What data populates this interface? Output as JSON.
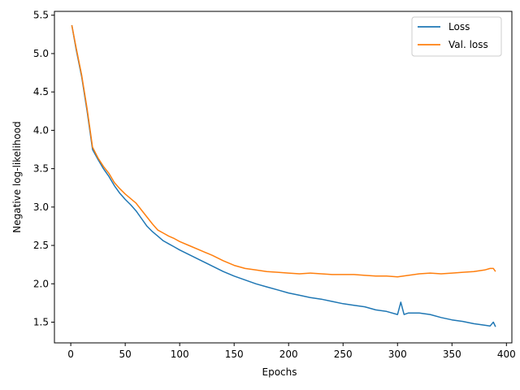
{
  "chart_data": {
    "type": "line",
    "title": "",
    "xlabel": "Epochs",
    "ylabel": "Negative log-likelihood",
    "xlim": [
      -15,
      405
    ],
    "ylim": [
      1.23,
      5.55
    ],
    "xticks": [
      0,
      50,
      100,
      150,
      200,
      250,
      300,
      350,
      400
    ],
    "yticks": [
      1.5,
      2.0,
      2.5,
      3.0,
      3.5,
      4.0,
      4.5,
      5.0,
      5.5
    ],
    "grid": false,
    "legend_position": "top-right",
    "series": [
      {
        "name": "Loss",
        "color": "#1f77b4",
        "x": [
          1,
          5,
          10,
          15,
          20,
          25,
          30,
          35,
          40,
          45,
          50,
          55,
          60,
          65,
          70,
          75,
          80,
          85,
          90,
          95,
          100,
          110,
          120,
          130,
          140,
          150,
          160,
          170,
          180,
          190,
          200,
          210,
          220,
          230,
          240,
          250,
          260,
          270,
          280,
          290,
          300,
          303,
          306,
          310,
          320,
          330,
          340,
          350,
          360,
          370,
          380,
          385,
          388,
          390
        ],
        "y": [
          5.37,
          5.05,
          4.7,
          4.25,
          3.75,
          3.62,
          3.5,
          3.4,
          3.28,
          3.18,
          3.1,
          3.03,
          2.95,
          2.85,
          2.75,
          2.68,
          2.62,
          2.56,
          2.52,
          2.48,
          2.44,
          2.37,
          2.3,
          2.23,
          2.16,
          2.1,
          2.05,
          2.0,
          1.96,
          1.92,
          1.88,
          1.85,
          1.82,
          1.8,
          1.77,
          1.74,
          1.72,
          1.7,
          1.66,
          1.64,
          1.6,
          1.76,
          1.6,
          1.62,
          1.62,
          1.6,
          1.56,
          1.53,
          1.51,
          1.48,
          1.46,
          1.45,
          1.5,
          1.44
        ]
      },
      {
        "name": "Val. loss",
        "color": "#ff7f0e",
        "x": [
          1,
          5,
          10,
          15,
          20,
          25,
          30,
          35,
          40,
          45,
          50,
          55,
          60,
          65,
          70,
          75,
          80,
          85,
          90,
          95,
          100,
          110,
          120,
          130,
          140,
          150,
          160,
          170,
          180,
          190,
          200,
          210,
          220,
          230,
          240,
          250,
          260,
          270,
          280,
          290,
          300,
          310,
          320,
          330,
          340,
          350,
          360,
          370,
          380,
          385,
          388,
          390
        ],
        "y": [
          5.37,
          5.07,
          4.72,
          4.28,
          3.78,
          3.64,
          3.53,
          3.44,
          3.32,
          3.24,
          3.17,
          3.11,
          3.05,
          2.96,
          2.87,
          2.78,
          2.7,
          2.66,
          2.62,
          2.59,
          2.55,
          2.49,
          2.43,
          2.37,
          2.3,
          2.24,
          2.2,
          2.18,
          2.16,
          2.15,
          2.14,
          2.13,
          2.14,
          2.13,
          2.12,
          2.12,
          2.12,
          2.11,
          2.1,
          2.1,
          2.09,
          2.11,
          2.13,
          2.14,
          2.13,
          2.14,
          2.15,
          2.16,
          2.18,
          2.2,
          2.2,
          2.16
        ]
      }
    ]
  }
}
